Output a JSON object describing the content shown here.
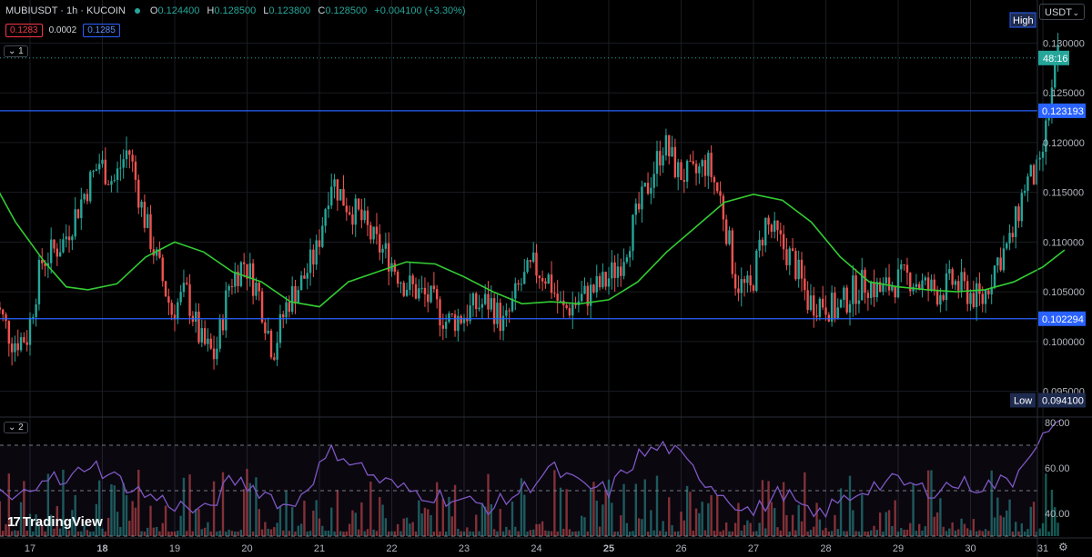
{
  "header": {
    "symbol": "MUBIUSDT · 1h · KUCOIN",
    "o_label": "O",
    "o": "0.124400",
    "h_label": "H",
    "h": "0.128500",
    "l_label": "L",
    "l": "0.123800",
    "c_label": "C",
    "c": "0.128500",
    "change": "+0.004100 (+3.30%)"
  },
  "bid": "0.1283",
  "spread": "0.0002",
  "ask": "0.1285",
  "pane1_tag": "1",
  "pane2_tag": "2",
  "currency": "USDT",
  "brand": "TradingView",
  "colors": {
    "up": "#26a69a",
    "down": "#ef5350",
    "ma": "#33cc33",
    "hline": "#2962ff",
    "rsi": "#7e57c2"
  },
  "chart_data": {
    "type": "candlestick",
    "x_ticks": [
      "17",
      "18",
      "19",
      "20",
      "21",
      "22",
      "23",
      "24",
      "25",
      "26",
      "27",
      "28",
      "29",
      "30",
      "31"
    ],
    "price_axis": {
      "range": [
        0.0925,
        0.1325
      ],
      "ticks": [
        "0.130000",
        "0.125000",
        "0.120000",
        "0.115000",
        "0.110000",
        "0.105000",
        "0.100000",
        "0.095000"
      ]
    },
    "horizontal_lines": [
      {
        "value": 0.123193,
        "label": "0.123193"
      },
      {
        "value": 0.102294,
        "label": "0.102294"
      }
    ],
    "high_marker": {
      "label": "High",
      "value": 0.1313
    },
    "low_marker": {
      "label": "Low",
      "value": 0.0941,
      "text": "0.094100"
    },
    "current": {
      "value": 0.1285,
      "countdown": "48:16"
    },
    "close_path": [
      [
        16.5,
        0.105
      ],
      [
        16.8,
        0.1
      ],
      [
        17.0,
        0.1005
      ],
      [
        17.2,
        0.108
      ],
      [
        17.5,
        0.11
      ],
      [
        17.8,
        0.115
      ],
      [
        18.0,
        0.118
      ],
      [
        18.2,
        0.116
      ],
      [
        18.4,
        0.1195
      ],
      [
        18.6,
        0.113
      ],
      [
        18.8,
        0.108
      ],
      [
        19.0,
        0.103
      ],
      [
        19.2,
        0.105
      ],
      [
        19.4,
        0.1
      ],
      [
        19.6,
        0.0985
      ],
      [
        19.8,
        0.106
      ],
      [
        20.0,
        0.108
      ],
      [
        20.2,
        0.105
      ],
      [
        20.4,
        0.099
      ],
      [
        20.6,
        0.104
      ],
      [
        20.8,
        0.106
      ],
      [
        21.0,
        0.109
      ],
      [
        21.2,
        0.1165
      ],
      [
        21.4,
        0.114
      ],
      [
        21.6,
        0.1125
      ],
      [
        21.8,
        0.11
      ],
      [
        22.0,
        0.1085
      ],
      [
        22.2,
        0.106
      ],
      [
        22.4,
        0.105
      ],
      [
        22.6,
        0.104
      ],
      [
        22.8,
        0.102
      ],
      [
        23.0,
        0.1025
      ],
      [
        23.2,
        0.1035
      ],
      [
        23.4,
        0.104
      ],
      [
        23.6,
        0.1015
      ],
      [
        23.8,
        0.1055
      ],
      [
        24.0,
        0.1075
      ],
      [
        24.2,
        0.1065
      ],
      [
        24.4,
        0.103
      ],
      [
        24.6,
        0.104
      ],
      [
        24.8,
        0.105
      ],
      [
        25.0,
        0.106
      ],
      [
        25.2,
        0.108
      ],
      [
        25.4,
        0.112
      ],
      [
        25.6,
        0.116
      ],
      [
        25.8,
        0.12
      ],
      [
        26.0,
        0.117
      ],
      [
        26.2,
        0.1165
      ],
      [
        26.4,
        0.118
      ],
      [
        26.6,
        0.114
      ],
      [
        26.8,
        0.106
      ],
      [
        27.0,
        0.105
      ],
      [
        27.2,
        0.112
      ],
      [
        27.4,
        0.11
      ],
      [
        27.6,
        0.108
      ],
      [
        27.8,
        0.104
      ],
      [
        28.0,
        0.104
      ],
      [
        28.2,
        0.103
      ],
      [
        28.4,
        0.105
      ],
      [
        28.6,
        0.106
      ],
      [
        28.8,
        0.105
      ],
      [
        29.0,
        0.106
      ],
      [
        29.2,
        0.1065
      ],
      [
        29.4,
        0.1055
      ],
      [
        29.6,
        0.105
      ],
      [
        29.8,
        0.106
      ],
      [
        30.0,
        0.105
      ],
      [
        30.2,
        0.104
      ],
      [
        30.4,
        0.108
      ],
      [
        30.6,
        0.11
      ],
      [
        30.8,
        0.116
      ],
      [
        31.0,
        0.117
      ],
      [
        31.1,
        0.122
      ],
      [
        31.25,
        0.1285
      ]
    ],
    "moving_average": [
      [
        16.5,
        0.116
      ],
      [
        16.8,
        0.112
      ],
      [
        17.2,
        0.108
      ],
      [
        17.5,
        0.1055
      ],
      [
        17.8,
        0.1052
      ],
      [
        18.2,
        0.1058
      ],
      [
        18.6,
        0.1085
      ],
      [
        19.0,
        0.11
      ],
      [
        19.4,
        0.109
      ],
      [
        19.8,
        0.107
      ],
      [
        20.2,
        0.106
      ],
      [
        20.6,
        0.104
      ],
      [
        21.0,
        0.1035
      ],
      [
        21.4,
        0.106
      ],
      [
        21.8,
        0.107
      ],
      [
        22.2,
        0.108
      ],
      [
        22.6,
        0.1078
      ],
      [
        23.0,
        0.1065
      ],
      [
        23.4,
        0.105
      ],
      [
        23.8,
        0.1038
      ],
      [
        24.2,
        0.104
      ],
      [
        24.6,
        0.1038
      ],
      [
        25.0,
        0.1042
      ],
      [
        25.4,
        0.106
      ],
      [
        25.8,
        0.109
      ],
      [
        26.2,
        0.1115
      ],
      [
        26.6,
        0.114
      ],
      [
        27.0,
        0.1148
      ],
      [
        27.4,
        0.1142
      ],
      [
        27.8,
        0.112
      ],
      [
        28.2,
        0.1085
      ],
      [
        28.6,
        0.106
      ],
      [
        29.0,
        0.1055
      ],
      [
        29.4,
        0.1052
      ],
      [
        29.8,
        0.105
      ],
      [
        30.2,
        0.1052
      ],
      [
        30.6,
        0.106
      ],
      [
        31.0,
        0.1075
      ],
      [
        31.3,
        0.1092
      ]
    ],
    "rsi": {
      "range": [
        30,
        82
      ],
      "ticks": [
        "80.00",
        "60.00",
        "40.00"
      ],
      "levels": [
        70,
        50,
        30
      ],
      "path": [
        [
          16.5,
          50
        ],
        [
          16.8,
          45
        ],
        [
          17.2,
          58
        ],
        [
          17.5,
          52
        ],
        [
          17.8,
          63
        ],
        [
          18.2,
          55
        ],
        [
          18.6,
          48
        ],
        [
          19.0,
          44
        ],
        [
          19.4,
          40
        ],
        [
          19.8,
          55
        ],
        [
          20.2,
          50
        ],
        [
          20.6,
          42
        ],
        [
          21.0,
          60
        ],
        [
          21.2,
          68
        ],
        [
          21.5,
          62
        ],
        [
          21.8,
          55
        ],
        [
          22.2,
          50
        ],
        [
          22.6,
          48
        ],
        [
          23.0,
          45
        ],
        [
          23.4,
          43
        ],
        [
          23.8,
          50
        ],
        [
          24.2,
          60
        ],
        [
          24.6,
          52
        ],
        [
          25.0,
          50
        ],
        [
          25.4,
          65
        ],
        [
          25.8,
          70
        ],
        [
          26.2,
          58
        ],
        [
          26.6,
          48
        ],
        [
          27.0,
          40
        ],
        [
          27.4,
          50
        ],
        [
          27.8,
          38
        ],
        [
          28.2,
          45
        ],
        [
          28.6,
          52
        ],
        [
          29.0,
          54
        ],
        [
          29.4,
          50
        ],
        [
          29.8,
          53
        ],
        [
          30.2,
          52
        ],
        [
          30.6,
          55
        ],
        [
          30.8,
          68
        ],
        [
          31.0,
          73
        ],
        [
          31.2,
          78
        ]
      ]
    }
  }
}
